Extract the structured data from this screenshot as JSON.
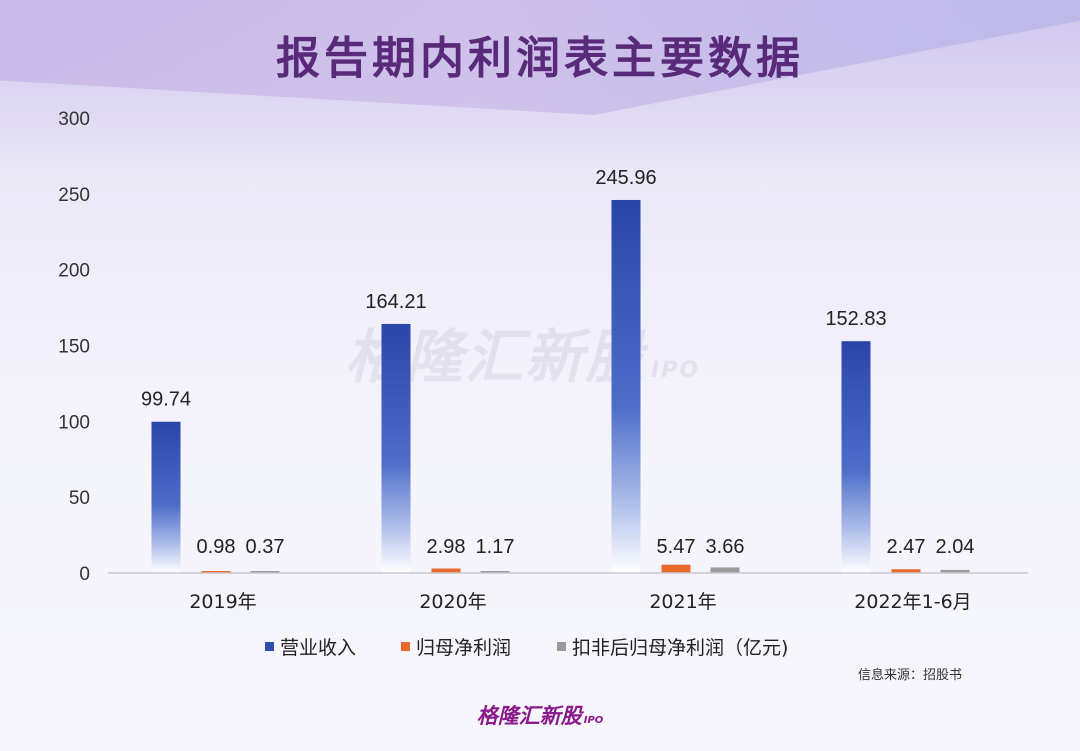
{
  "title": "报告期内利润表主要数据",
  "watermark": {
    "text": "格隆汇新股",
    "sub": "IPO"
  },
  "source": "信息来源：招股书",
  "footer": {
    "text": "格隆汇新股",
    "sub": "IPO"
  },
  "chart_data": {
    "type": "bar",
    "categories": [
      "2019年",
      "2020年",
      "2021年",
      "2022年1-6月"
    ],
    "series": [
      {
        "name": "营业收入",
        "values": [
          99.74,
          164.21,
          245.96,
          152.83
        ],
        "color": "#2f4fb0"
      },
      {
        "name": "归母净利润",
        "values": [
          0.98,
          2.98,
          5.47,
          2.47
        ],
        "color": "#e86a2a"
      },
      {
        "name": "扣非后归母净利润（亿元)",
        "values": [
          0.37,
          1.17,
          3.66,
          2.04
        ],
        "color": "#9a9a9a"
      }
    ],
    "data_labels": [
      [
        "99.74",
        "164.21",
        "245.96",
        "152.83"
      ],
      [
        "0.98",
        "2.98",
        "5.47",
        "2.47"
      ],
      [
        "0.37",
        "1.17",
        "3.66",
        "2.04"
      ]
    ],
    "ylim": [
      0,
      300
    ],
    "yticks": [
      "0",
      "50",
      "100",
      "150",
      "200",
      "250",
      "300"
    ],
    "legend_position": "bottom",
    "grid": false
  }
}
